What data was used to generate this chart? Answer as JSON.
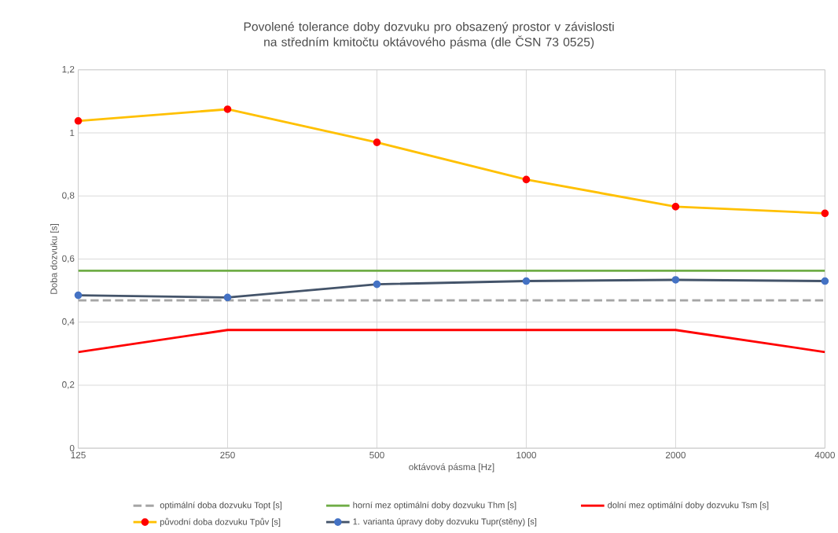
{
  "chart_data": {
    "type": "line",
    "title": "Povolené tolerance doby dozvuku pro obsazený prostor v závislosti na středním kmitočtu oktávového pásma (dle ČSN 73 0525)",
    "xlabel": "oktávová pásma [Hz]",
    "ylabel": "Doba dozvuku [s]",
    "categories": [
      "125",
      "250",
      "500",
      "1000",
      "2000",
      "4000"
    ],
    "ylim": [
      0,
      1.2
    ],
    "yticks": [
      0,
      {
        "value": 0.2,
        "label": "0,2"
      },
      {
        "value": 0.4,
        "label": "0,4"
      },
      {
        "value": 0.6,
        "label": "0,6"
      },
      {
        "value": 0.8,
        "label": "0,8"
      },
      1,
      {
        "value": 1.2,
        "label": "1,2"
      }
    ],
    "grid": true,
    "legend": "bottom",
    "series": [
      {
        "name": "optimální doba dozvuku Topt [s]",
        "color": "#a5a5a5",
        "line_style": "dashed",
        "marker": "none",
        "values": [
          0.469,
          0.469,
          0.469,
          0.469,
          0.469,
          0.469
        ]
      },
      {
        "name": "horní mez optimální doby dozvuku Thm [s]",
        "color": "#70ad47",
        "line_style": "solid",
        "marker": "none",
        "values": [
          0.563,
          0.563,
          0.563,
          0.563,
          0.563,
          0.563
        ]
      },
      {
        "name": "dolní mez optimální doby dozvuku Tsm [s]",
        "color": "#ff0000",
        "line_style": "solid",
        "marker": "none",
        "values": [
          0.305,
          0.375,
          0.375,
          0.375,
          0.375,
          0.305
        ]
      },
      {
        "name": "původní doba dozvuku Tpův [s]",
        "color": "#ffc000",
        "line_style": "solid",
        "marker": "circle",
        "colors": [
          "#ff0000",
          "#ff0000",
          "#ff0000",
          "#ff0000",
          "#ff0000",
          "#ff0000"
        ],
        "values": [
          1.038,
          1.075,
          0.97,
          0.852,
          0.766,
          0.745
        ]
      },
      {
        "name": "1. varianta úpravy doby dozvuku Tupr(stěny) [s]",
        "color": "#44546a",
        "line_style": "solid",
        "marker": "circle",
        "colors": [
          "#4472c4",
          "#4472c4",
          "#4472c4",
          "#4472c4",
          "#4472c4",
          "#4472c4"
        ],
        "values": [
          0.485,
          0.478,
          0.52,
          0.53,
          0.534,
          0.53
        ]
      }
    ]
  }
}
